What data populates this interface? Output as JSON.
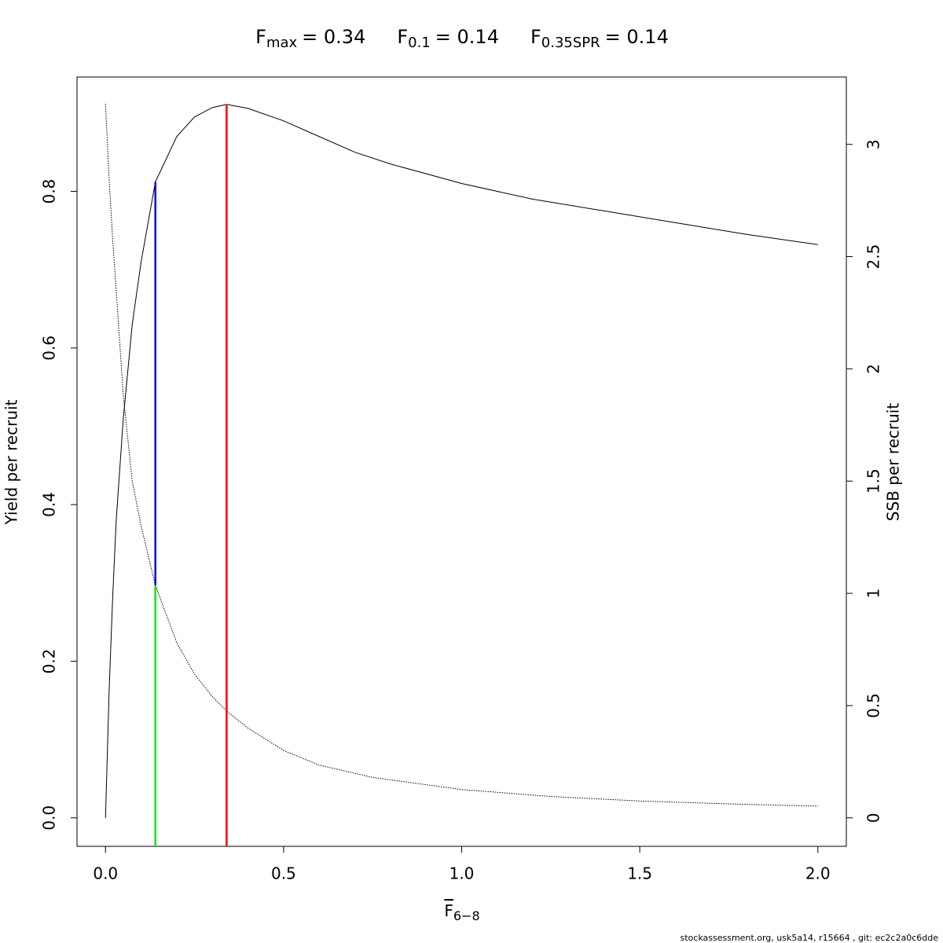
{
  "chart_data": {
    "type": "line",
    "title_parts": [
      {
        "base": "F",
        "sub": "max",
        "rest": "= 0.34"
      },
      {
        "base": "F",
        "sub": "0.1",
        "rest": "= 0.14"
      },
      {
        "base": "F",
        "sub": "0.35SPR",
        "rest": "= 0.14"
      }
    ],
    "xlabel": {
      "base": "F",
      "sub": "6−8"
    },
    "ylabel": "Yield per recruit",
    "y2label": "SSB per recruit",
    "footnote": "stockassessment.org, usk5a14, r15664 , git: ec2c2a0c6dde",
    "xlim": [
      -0.08,
      2.08
    ],
    "ylim": [
      -0.0364,
      0.946
    ],
    "y2lim": [
      -0.127,
      3.3
    ],
    "xticks": [
      {
        "value": 0,
        "label": "0.0"
      },
      0.5,
      {
        "value": 1,
        "label": "1.0"
      },
      1.5,
      {
        "value": 2,
        "label": "2.0"
      }
    ],
    "yticks": [
      {
        "value": 0,
        "label": "0.0"
      },
      0.2,
      0.4,
      0.6,
      0.8
    ],
    "y2ticks": [
      0,
      0.5,
      1,
      1.5,
      2,
      2.5,
      3
    ],
    "series": [
      {
        "color": "#000000",
        "dash": "solid",
        "x": [
          0,
          0.005,
          0.01,
          0.02,
          0.03,
          0.05,
          0.075,
          0.1,
          0.14,
          0.2,
          0.25,
          0.3,
          0.34,
          0.4,
          0.5,
          0.6,
          0.7,
          0.8,
          1.0,
          1.2,
          1.4,
          1.6,
          1.8,
          2.0
        ],
        "values": [
          0,
          0.08,
          0.16,
          0.28,
          0.38,
          0.51,
          0.63,
          0.71,
          0.812,
          0.87,
          0.895,
          0.907,
          0.911,
          0.906,
          0.89,
          0.87,
          0.85,
          0.835,
          0.81,
          0.79,
          0.775,
          0.76,
          0.745,
          0.732
        ]
      },
      {
        "color": "#000000",
        "dash": "dotted",
        "axis": "y2",
        "x": [
          0,
          0.01,
          0.02,
          0.03,
          0.05,
          0.075,
          0.1,
          0.14,
          0.2,
          0.25,
          0.3,
          0.34,
          0.4,
          0.5,
          0.6,
          0.75,
          1.0,
          1.25,
          1.5,
          1.75,
          2.0
        ],
        "values": [
          3.18,
          2.85,
          2.58,
          2.35,
          1.88,
          1.5,
          1.3,
          1.036,
          0.78,
          0.64,
          0.54,
          0.476,
          0.4,
          0.3,
          0.235,
          0.18,
          0.126,
          0.095,
          0.075,
          0.062,
          0.052
        ]
      }
    ],
    "ref_lines": [
      {
        "x": 0.34,
        "y": [
          -0.0364,
          0.911
        ],
        "color": "#ff0000"
      },
      {
        "x": 0.14,
        "y": [
          0.297,
          0.812
        ],
        "color": "#0000ff"
      },
      {
        "x": 0.14,
        "y": [
          -0.0364,
          0.297
        ],
        "color": "#00ee00"
      }
    ]
  }
}
